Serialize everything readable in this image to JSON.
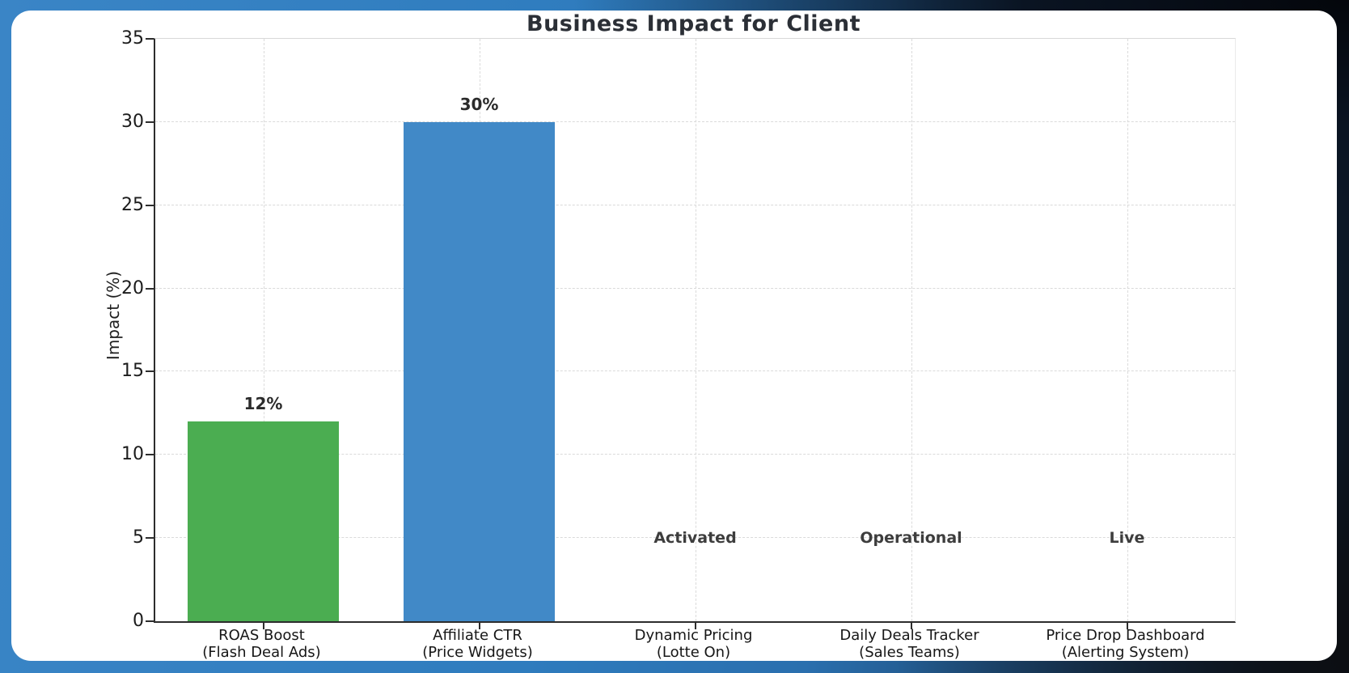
{
  "chart_data": {
    "type": "bar",
    "title": "Business Impact for Client",
    "xlabel": "",
    "ylabel": "Impact (%)",
    "ylim": [
      0,
      35
    ],
    "yticks": [
      0,
      5,
      10,
      15,
      20,
      25,
      30,
      35
    ],
    "grid": "dashed, both axes, light gray",
    "legend": "none",
    "categories": [
      "ROAS Boost\n(Flash Deal Ads)",
      "Affiliate CTR\n(Price Widgets)",
      "Dynamic Pricing\n(Lotte On)",
      "Daily Deals Tracker\n(Sales Teams)",
      "Price Drop Dashboard\n(Alerting System)"
    ],
    "values": [
      12,
      30,
      0,
      0,
      0
    ],
    "bar_labels": [
      "12%",
      "30%",
      "",
      "",
      ""
    ],
    "bar_colors": [
      "#4bad51",
      "#4189c7",
      null,
      null,
      null
    ],
    "annotations": [
      {
        "category_index": 2,
        "text": "Activated",
        "y": 5
      },
      {
        "category_index": 3,
        "text": "Operational",
        "y": 5
      },
      {
        "category_index": 4,
        "text": "Live",
        "y": 5
      }
    ]
  },
  "colors": {
    "bar_green": "#4bad51",
    "bar_blue": "#4189c7",
    "gridline": "#dadada",
    "axis_spine": "#2d2d2d",
    "title_text": "#2b2f36",
    "tick_text": "#1c1c1c",
    "annotation_text": "#3d3d3d",
    "panel_background": "#ffffff",
    "frame_blue": "#3a85c6",
    "frame_dark": "#0a0f16"
  }
}
